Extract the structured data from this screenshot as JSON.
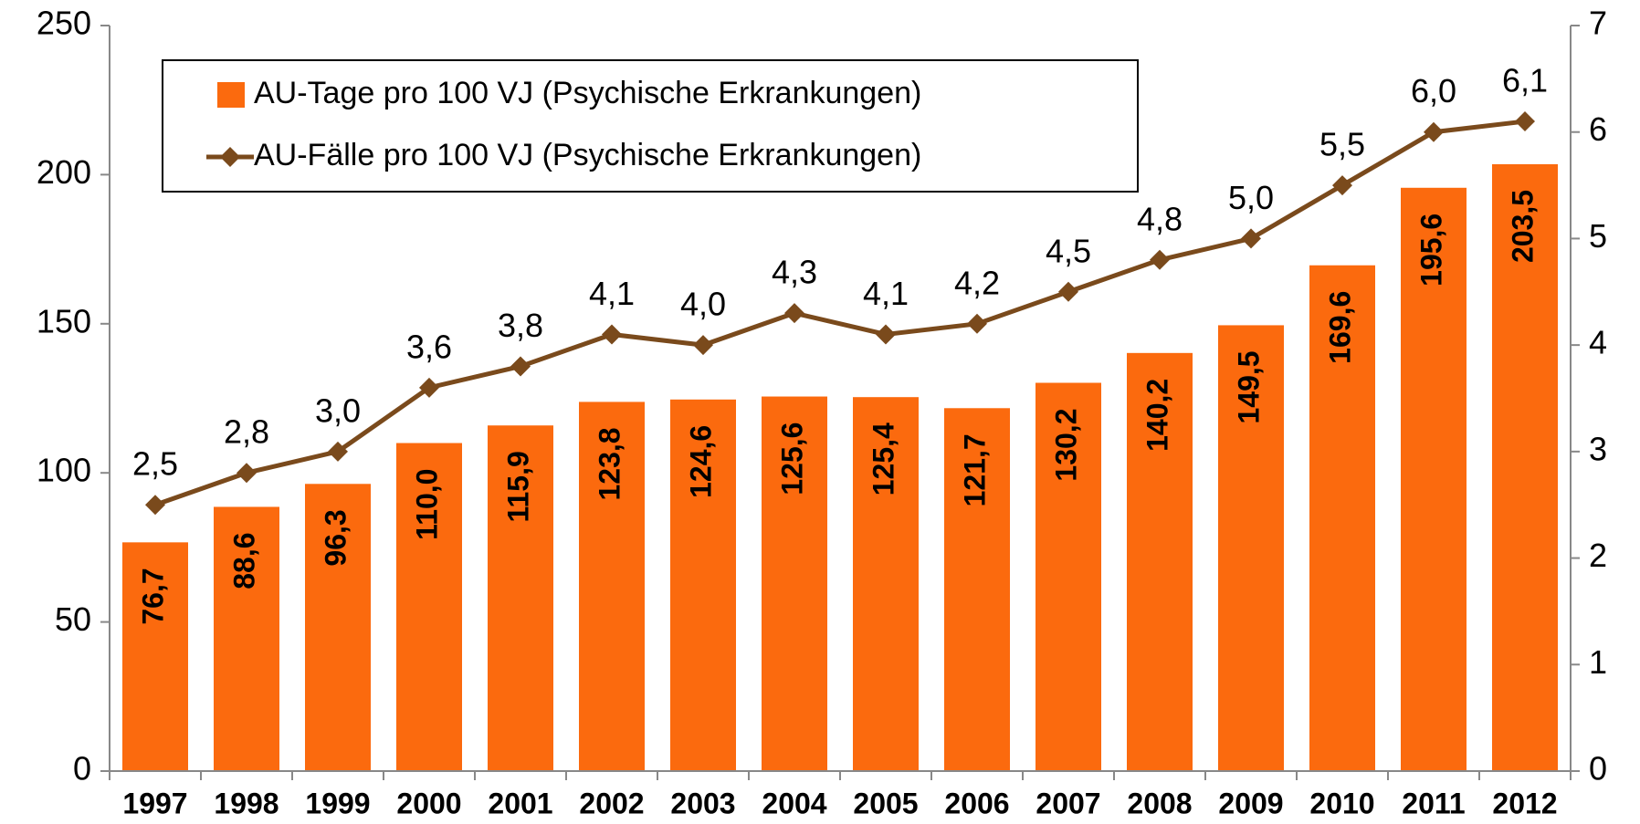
{
  "chart_data": {
    "type": "bar-line",
    "categories": [
      "1997",
      "1998",
      "1999",
      "2000",
      "2001",
      "2002",
      "2003",
      "2004",
      "2005",
      "2006",
      "2007",
      "2008",
      "2009",
      "2010",
      "2011",
      "2012"
    ],
    "series": [
      {
        "name": "AU-Tage pro 100 VJ (Psychische Erkrankungen)",
        "color": "#fb6a0e",
        "type": "bar",
        "values": [
          76.7,
          88.6,
          96.3,
          110.0,
          115.9,
          123.8,
          124.6,
          125.6,
          125.4,
          121.7,
          130.2,
          140.2,
          149.5,
          169.6,
          195.6,
          203.5
        ],
        "value_labels": [
          "76,7",
          "88,6",
          "96,3",
          "110,0",
          "115,9",
          "123,8",
          "124,6",
          "125,6",
          "125,4",
          "121,7",
          "130,2",
          "140,2",
          "149,5",
          "169,6",
          "195,6",
          "203,5"
        ]
      },
      {
        "name": "AU-Fälle pro 100 VJ (Psychische Erkrankungen)",
        "color": "#7a4a1c",
        "type": "line",
        "axis": "y2",
        "values": [
          2.5,
          2.8,
          3.0,
          3.6,
          3.8,
          4.1,
          4.0,
          4.3,
          4.1,
          4.2,
          4.5,
          4.8,
          5.0,
          5.5,
          6.0,
          6.1
        ],
        "value_labels": [
          "2,5",
          "2,8",
          "3,0",
          "3,6",
          "3,8",
          "4,1",
          "4,0",
          "4,3",
          "4,1",
          "4,2",
          "4,5",
          "4,8",
          "5,0",
          "5,5",
          "6,0",
          "6,1"
        ]
      }
    ],
    "ylim": [
      0,
      250
    ],
    "yticks": [
      0,
      50,
      100,
      150,
      200,
      250
    ],
    "y2lim": [
      0,
      7
    ],
    "y2ticks": [
      0,
      1,
      2,
      3,
      4,
      5,
      6,
      7
    ],
    "legend": "upper left",
    "grid": false
  }
}
